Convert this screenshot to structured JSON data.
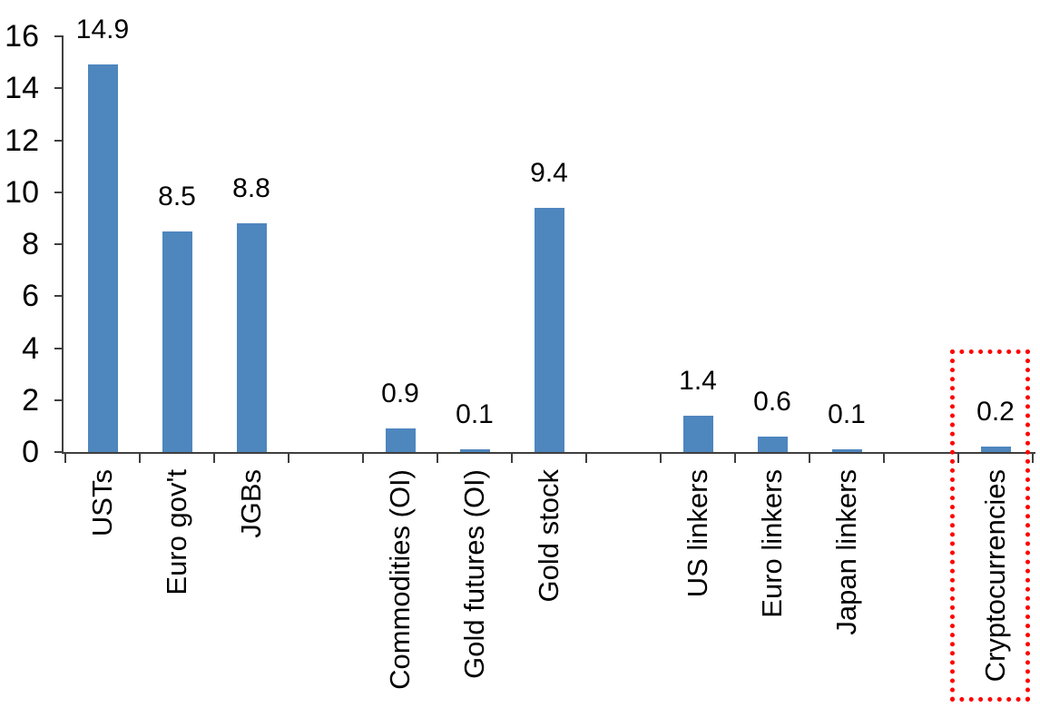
{
  "chart_data": {
    "type": "bar",
    "title": "",
    "categories": [
      "USTs",
      "Euro gov't",
      "JGBs",
      "",
      "Commodities (OI)",
      "Gold futures (OI)",
      "Gold stock",
      "",
      "US linkers",
      "Euro linkers",
      "Japan linkers",
      "",
      "Cryptocurrencies"
    ],
    "values": [
      14.9,
      8.5,
      8.8,
      null,
      0.9,
      0.1,
      9.4,
      null,
      1.4,
      0.6,
      0.1,
      null,
      0.2
    ],
    "value_labels": [
      "14.9",
      "8.5",
      "8.8",
      null,
      "0.9",
      "0.1",
      "9.4",
      null,
      "1.4",
      "0.6",
      "0.1",
      null,
      "0.2"
    ],
    "xlabel": "",
    "ylabel": "",
    "ylim": [
      0,
      16
    ],
    "y_tick_step": 2,
    "y_tick_labels": [
      "0",
      "2",
      "4",
      "6",
      "8",
      "10",
      "12",
      "14",
      "16"
    ],
    "grid": "off",
    "legend": "none",
    "bar_color": "#4e86be",
    "axis_color": "#3f3f3f",
    "text_color": "#000000",
    "highlight": {
      "category": "Cryptocurrencies",
      "style": "dotted-box",
      "color": "#ff0000"
    }
  }
}
